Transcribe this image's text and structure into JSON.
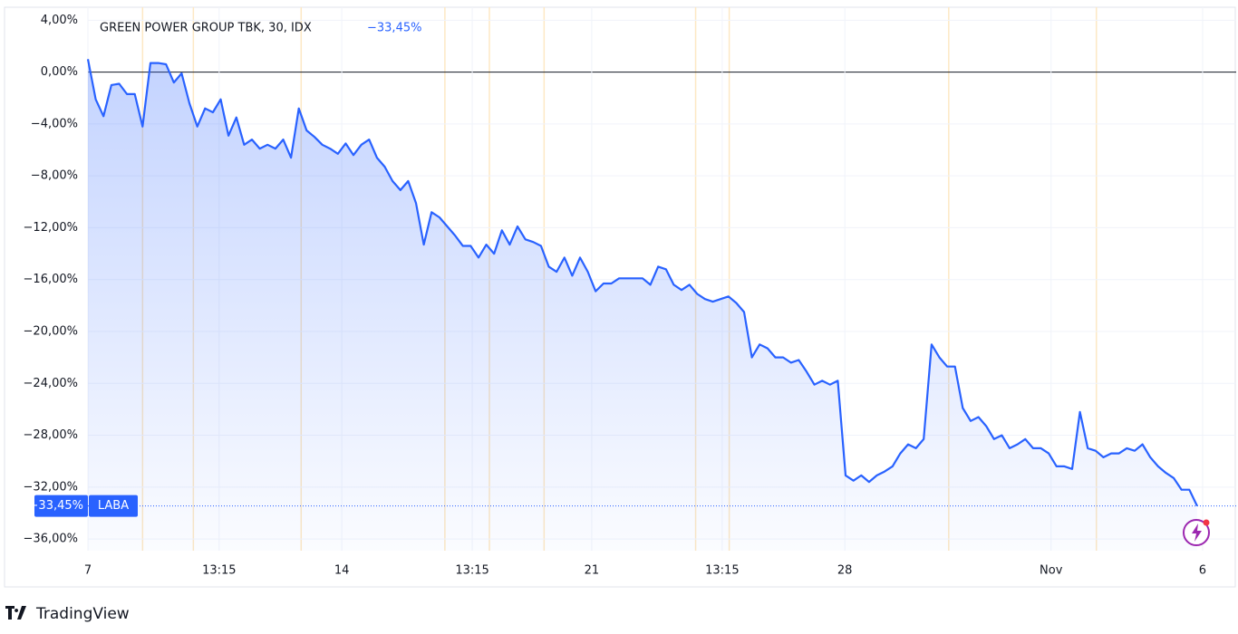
{
  "chart_data": {
    "type": "line",
    "title": "GREEN POWER GROUP TBK, 30, IDX",
    "change": "−33,45%",
    "last_label": {
      "value": -33.45,
      "label": "−33,45%"
    },
    "series_tag": "LABA",
    "footer": "TradingView",
    "color": "#2962ff",
    "xlim": [
      0,
      147
    ],
    "ylim": [
      -36.9,
      5.0
    ],
    "yticks": [
      {
        "value": 4,
        "label": "4,00%"
      },
      {
        "value": 0,
        "label": "0,00%"
      },
      {
        "value": -4,
        "label": "−4,00%"
      },
      {
        "value": -8,
        "label": "−8,00%"
      },
      {
        "value": -12,
        "label": "−12,00%"
      },
      {
        "value": -16,
        "label": "−16,00%"
      },
      {
        "value": -20,
        "label": "−20,00%"
      },
      {
        "value": -24,
        "label": "−24,00%"
      },
      {
        "value": -28,
        "label": "−28,00%"
      },
      {
        "value": -32,
        "label": "−32,00%"
      },
      {
        "value": -36,
        "label": "−36,00%"
      }
    ],
    "xticks": [
      {
        "value": 0,
        "label": "7"
      },
      {
        "value": 16.8,
        "label": "13:15"
      },
      {
        "value": 32.5,
        "label": "14"
      },
      {
        "value": 49.2,
        "label": "13:15"
      },
      {
        "value": 64.5,
        "label": "21"
      },
      {
        "value": 81.2,
        "label": "13:15"
      },
      {
        "value": 96.9,
        "label": "28"
      },
      {
        "value": 123.3,
        "label": "Nov"
      },
      {
        "value": 142.7,
        "label": "6"
      }
    ],
    "session_breaks": [
      7.0,
      13.5,
      27.3,
      45.7,
      51.4,
      58.4,
      77.8,
      82.1,
      110.2,
      129.1
    ],
    "values": [
      1.0,
      -2.1,
      -3.4,
      -1.0,
      -0.9,
      -1.7,
      -1.7,
      -4.2,
      0.7,
      0.7,
      0.6,
      -0.8,
      -0.1,
      -2.4,
      -4.2,
      -2.8,
      -3.1,
      -2.1,
      -4.9,
      -3.5,
      -5.6,
      -5.2,
      -5.9,
      -5.6,
      -5.9,
      -5.2,
      -6.6,
      -2.8,
      -4.5,
      -5.0,
      -5.6,
      -5.9,
      -6.3,
      -5.5,
      -6.4,
      -5.6,
      -5.2,
      -6.6,
      -7.3,
      -8.4,
      -9.1,
      -8.4,
      -10.1,
      -13.3,
      -10.8,
      -11.2,
      -11.9,
      -12.6,
      -13.4,
      -13.4,
      -14.3,
      -13.3,
      -14.0,
      -12.2,
      -13.3,
      -11.9,
      -12.9,
      -13.1,
      -13.4,
      -15.0,
      -15.4,
      -14.3,
      -15.7,
      -14.3,
      -15.4,
      -16.9,
      -16.3,
      -16.3,
      -15.9,
      -15.9,
      -15.9,
      -15.9,
      -16.4,
      -15.0,
      -15.2,
      -16.4,
      -16.8,
      -16.4,
      -17.1,
      -17.5,
      -17.7,
      -17.5,
      -17.3,
      -17.8,
      -18.5,
      -22.0,
      -21.0,
      -21.3,
      -22.0,
      -22.0,
      -22.4,
      -22.2,
      -23.1,
      -24.1,
      -23.8,
      -24.1,
      -23.8,
      -31.1,
      -31.5,
      -31.1,
      -31.6,
      -31.1,
      -30.8,
      -30.4,
      -29.4,
      -28.7,
      -29.0,
      -28.3,
      -21.0,
      -22.0,
      -22.7,
      -22.7,
      -25.9,
      -26.9,
      -26.6,
      -27.3,
      -28.3,
      -28.0,
      -29.0,
      -28.7,
      -28.3,
      -29.0,
      -29.0,
      -29.4,
      -30.4,
      -30.4,
      -30.6,
      -26.2,
      -29.0,
      -29.2,
      -29.7,
      -29.4,
      -29.4,
      -29.0,
      -29.2,
      -28.7,
      -29.7,
      -30.4,
      -30.9,
      -31.3,
      -32.2,
      -32.2,
      -33.45
    ]
  }
}
